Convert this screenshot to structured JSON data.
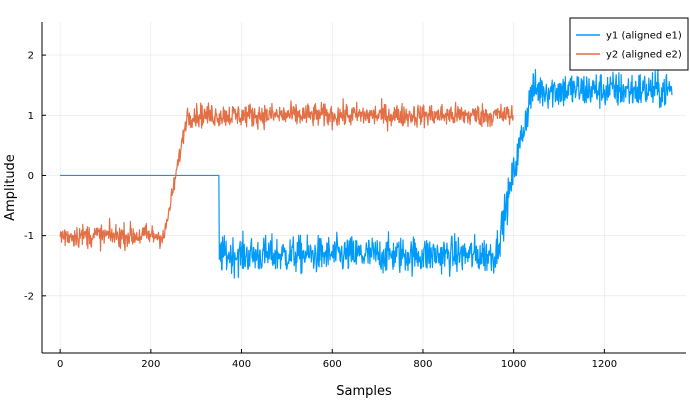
{
  "chart_data": {
    "type": "line",
    "title": "",
    "xlabel": "Samples",
    "ylabel": "Amplitude",
    "xlim": [
      -40,
      1380
    ],
    "ylim": [
      -2.95,
      2.55
    ],
    "x_ticks": [
      0,
      200,
      400,
      600,
      800,
      1000,
      1200
    ],
    "y_ticks": [
      -2,
      -1,
      0,
      1,
      2
    ],
    "x_tick_labels": [
      "0",
      "200",
      "400",
      "600",
      "800",
      "1000",
      "1200"
    ],
    "y_tick_labels": [
      "-2",
      "-1",
      "0",
      "1",
      "2"
    ],
    "grid": true,
    "legend_position": "top-right",
    "series": [
      {
        "name": "y1 (aligned e1)",
        "color": "#009AFA",
        "description": "noisy step signal",
        "length": 1350,
        "segments": [
          {
            "from": 0,
            "to": 350,
            "mean": 0.0,
            "noise": 0.0
          },
          {
            "from": 351,
            "to": 960,
            "mean": -1.32,
            "noise": 0.22
          },
          {
            "from": 960,
            "to": 1040,
            "ramp_to": 1.4,
            "noise": 0.22
          },
          {
            "from": 1040,
            "to": 1350,
            "mean": 1.42,
            "noise": 0.22
          }
        ]
      },
      {
        "name": "y2 (aligned e2)",
        "color": "#E26F46",
        "length": 1000,
        "segments": [
          {
            "from": 0,
            "to": 230,
            "mean": -1.0,
            "noise": 0.14
          },
          {
            "from": 230,
            "to": 280,
            "ramp_to": 1.0,
            "noise": 0.1
          },
          {
            "from": 280,
            "to": 1000,
            "mean": 1.0,
            "noise": 0.14
          }
        ]
      }
    ]
  }
}
